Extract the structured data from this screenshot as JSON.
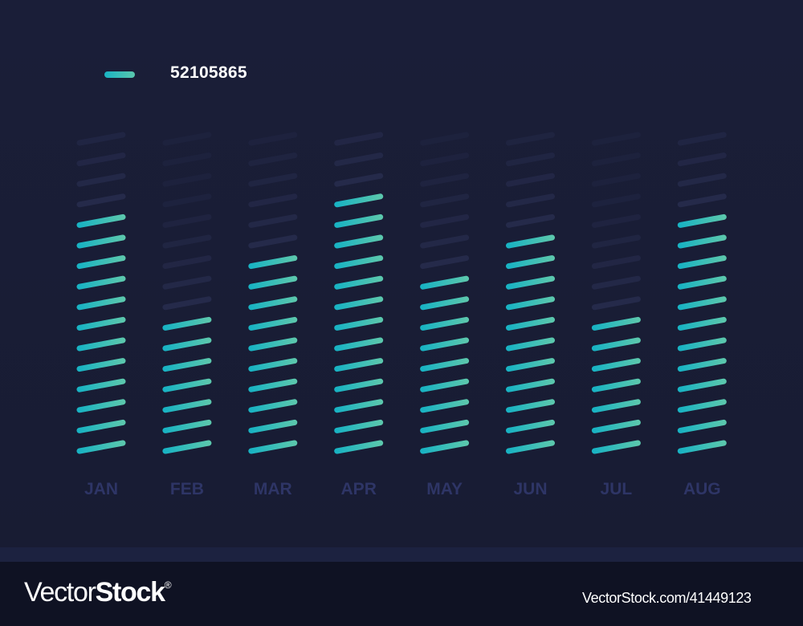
{
  "legend": {
    "label": "52105865"
  },
  "chart_data": {
    "type": "bar",
    "categories": [
      "JAN",
      "FEB",
      "MAR",
      "APR",
      "MAY",
      "JUN",
      "JUL",
      "AUG"
    ],
    "series": [
      {
        "name": "52105865",
        "values": [
          12,
          7,
          10,
          13,
          9,
          11,
          7,
          12
        ]
      }
    ],
    "ylim": [
      0,
      16
    ],
    "grid": false,
    "legend_position": "top-left",
    "colors": {
      "active_start": "#19b3c3",
      "active_end": "#5ac7ad",
      "inactive": "#252a4a",
      "tick_label": "#2e3566"
    }
  },
  "watermark": {
    "logo_regular": "Vector",
    "logo_bold": "Stock",
    "logo_mark": "®",
    "image_id": "VectorStock.com/41449123"
  }
}
